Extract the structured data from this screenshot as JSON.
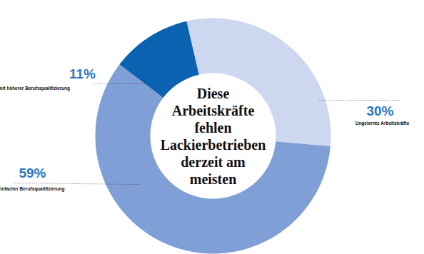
{
  "chart_data": {
    "type": "donut",
    "title": "Diese\nArbeitskräfte\nfehlen\nLackierbetrieben\nderzeit am\nmeisten",
    "categories": [
      "Ungelernte Arbeitskräfte",
      "Fachkräfte mit einfacher Berufsqualifizierung",
      "Fachkräfte mit höherer Berufsqualifizierung"
    ],
    "values": [
      30,
      59,
      11
    ],
    "value_labels": [
      "30%",
      "59%",
      "11%"
    ],
    "colors": [
      "#cdd7ef",
      "#819fd7",
      "#0b62b0"
    ],
    "data_labels": true
  }
}
